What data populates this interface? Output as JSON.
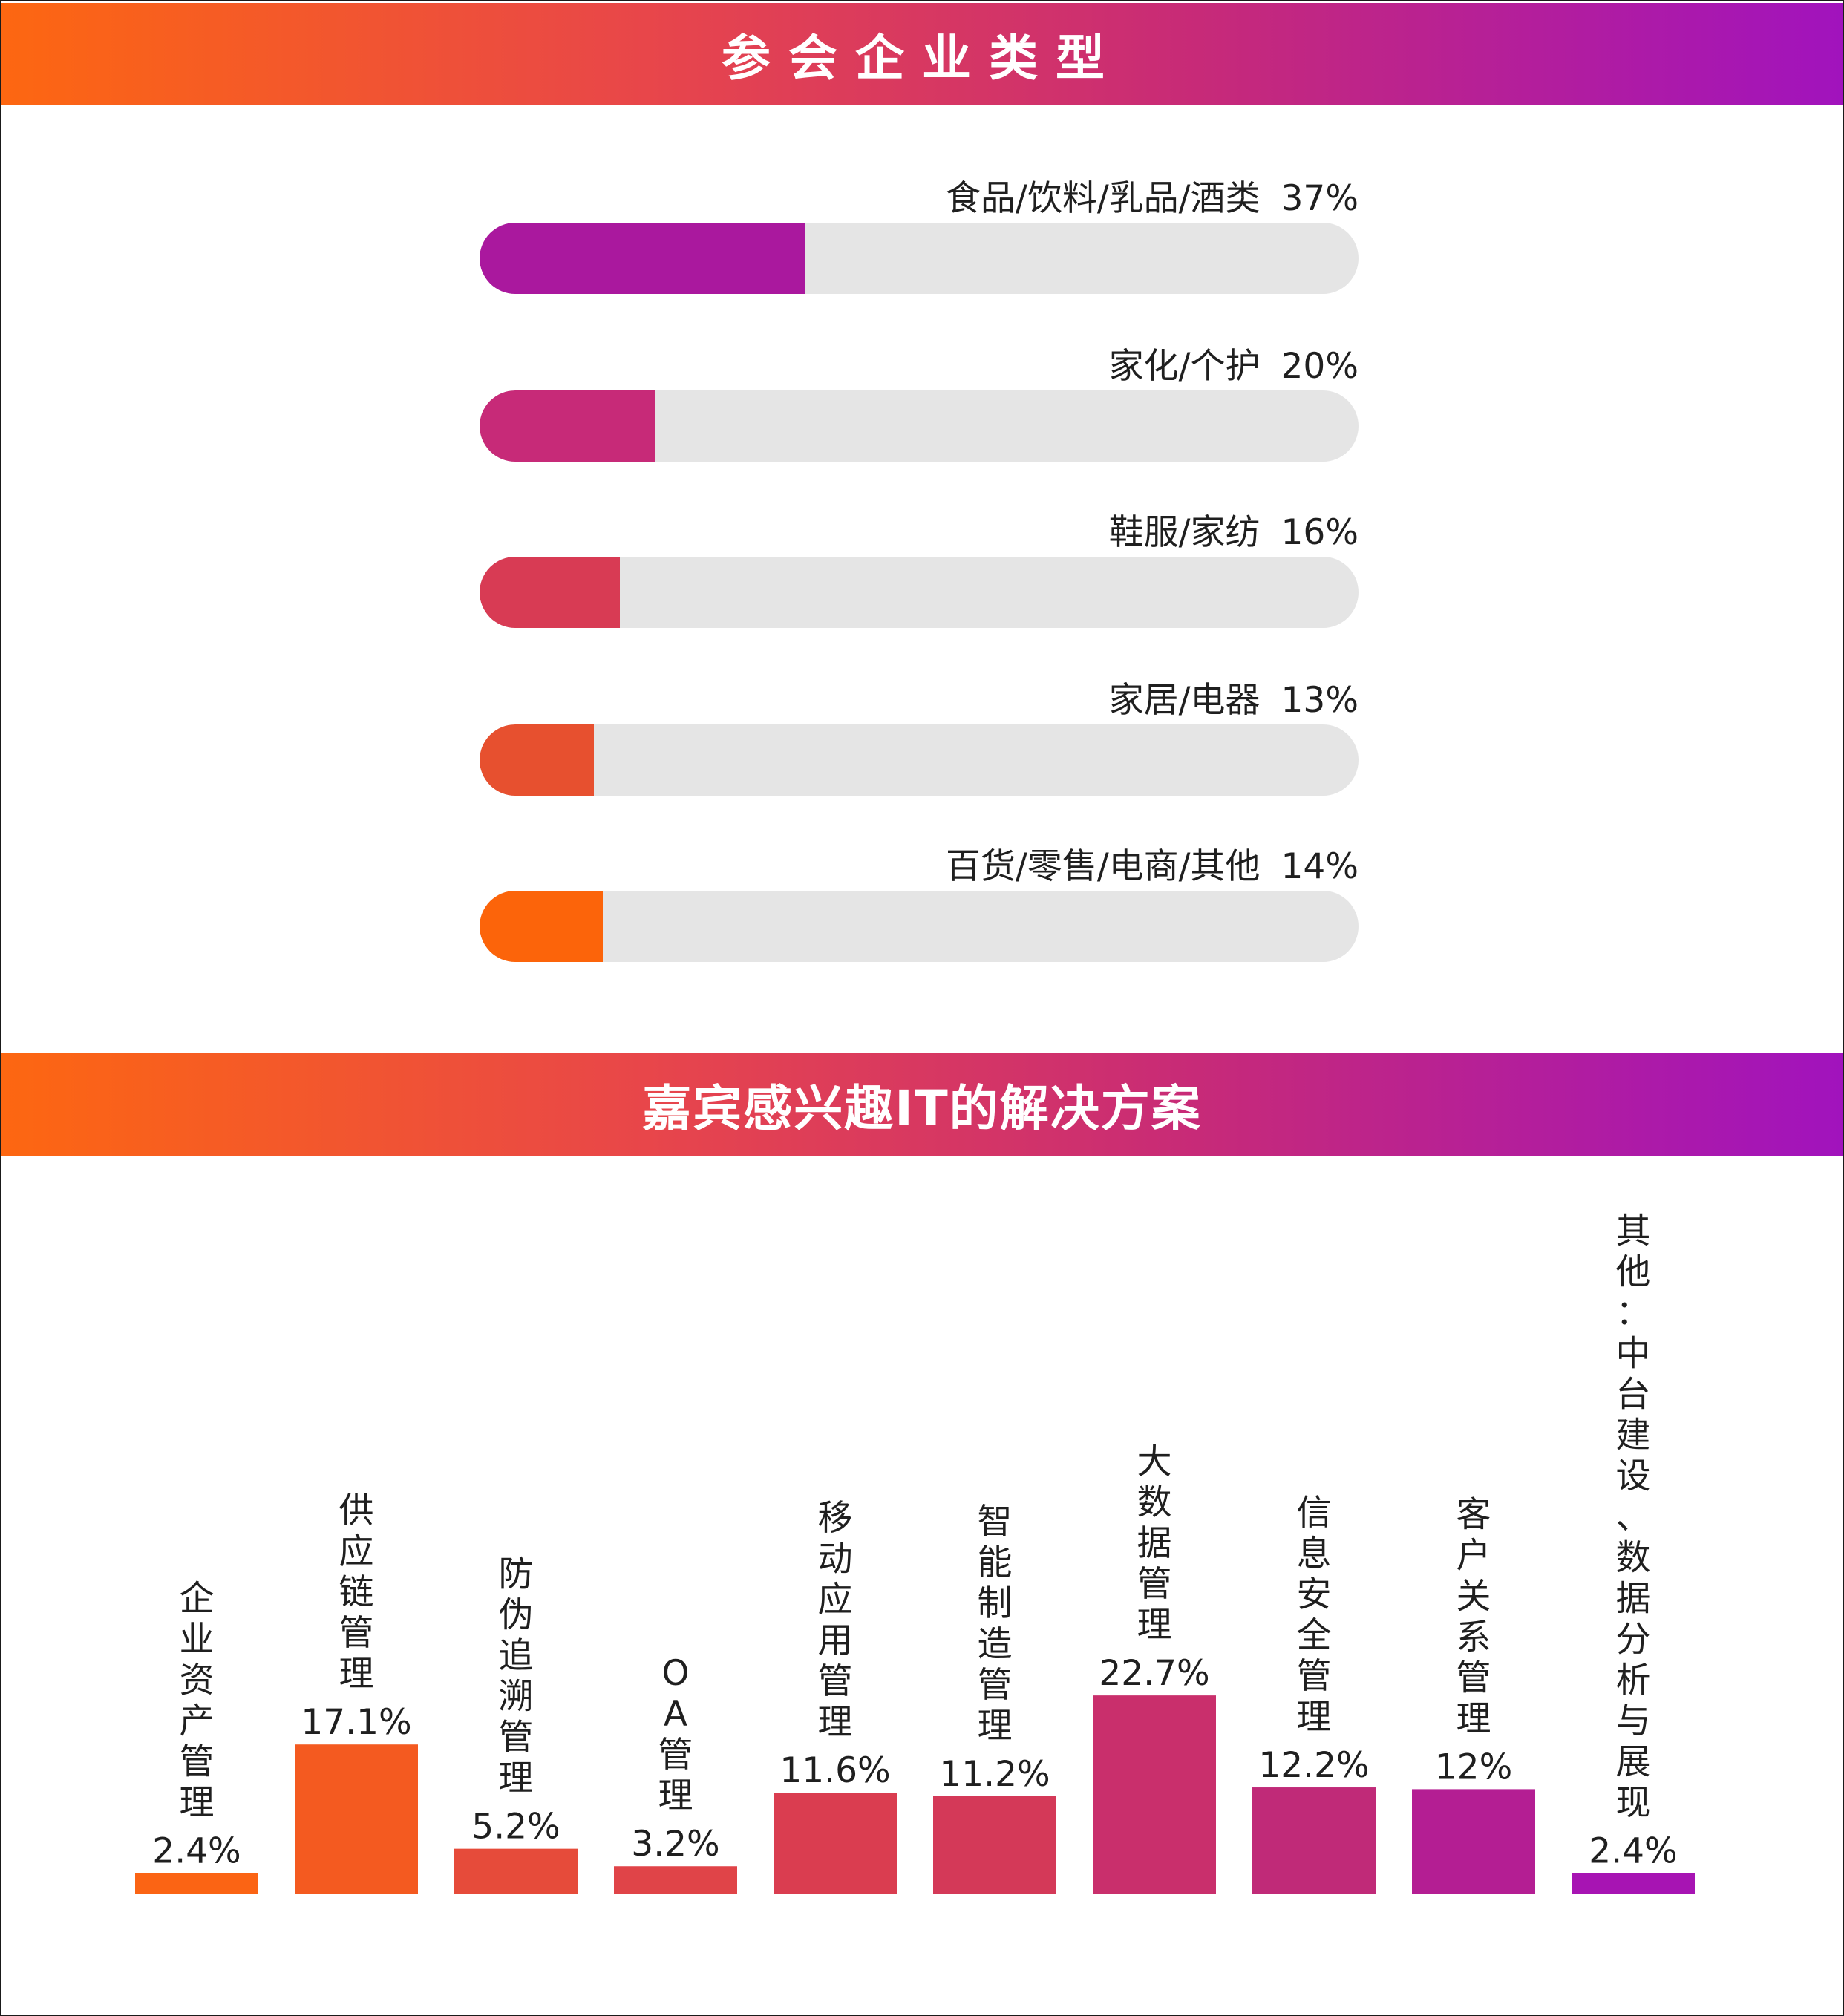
{
  "sections": {
    "company_types": {
      "title": "参会企业类型"
    },
    "it_interest": {
      "title": "嘉宾感兴趣IT的解决方案"
    }
  },
  "chart_data": [
    {
      "type": "bar",
      "orientation": "horizontal",
      "title": "参会企业类型",
      "categories": [
        "食品/饮料/乳品/酒类",
        "家化/个护",
        "鞋服/家纺",
        "家居/电器",
        "百货/零售/电商/其他"
      ],
      "values": [
        37,
        20,
        16,
        13,
        14
      ],
      "value_labels": [
        "37%",
        "20%",
        "16%",
        "13%",
        "14%"
      ],
      "xlim": [
        0,
        100
      ],
      "bar_colors": [
        "#aa189e",
        "#c72a78",
        "#d83b54",
        "#e7502f",
        "#fc640a"
      ],
      "track_color": "#e5e5e5"
    },
    {
      "type": "bar",
      "title": "嘉宾感兴趣IT的解决方案",
      "categories": [
        "企业资产管理",
        "供应链管理",
        "防伪追溯管理",
        "OA管理",
        "移动应用管理",
        "智能制造管理",
        "大数据管理",
        "信息安全管理",
        "客户关系管理",
        "其他：中台建设、数据分析与展现"
      ],
      "values": [
        2.4,
        17.1,
        5.2,
        3.2,
        11.6,
        11.2,
        22.7,
        12.2,
        12,
        2.4
      ],
      "value_labels": [
        "2.4%",
        "17.1%",
        "5.2%",
        "3.2%",
        "11.6%",
        "11.2%",
        "22.7%",
        "12.2%",
        "12%",
        "2.4%"
      ],
      "ylim": [
        0,
        100
      ],
      "grid": false,
      "bar_colors": [
        "#fb6414",
        "#f45a20",
        "#e64b3a",
        "#e04448",
        "#da3d50",
        "#d43958",
        "#c92f6c",
        "#c02a78",
        "#b41e93",
        "#a714b3"
      ]
    }
  ]
}
